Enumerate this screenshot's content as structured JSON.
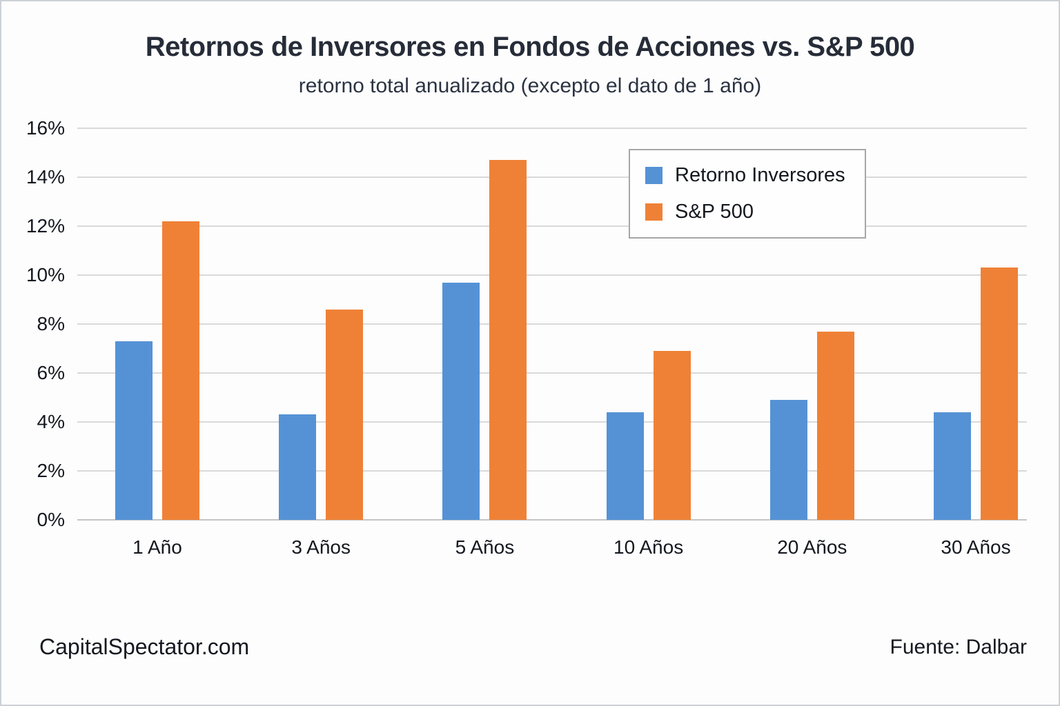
{
  "page": {
    "title": "Retornos de Inversores en Fondos de Acciones vs. S&P 500",
    "subtitle": "retorno total anualizado (excepto el dato de 1 año)",
    "footer_left": "CapitalSpectator.com",
    "footer_right": "Fuente: Dalbar"
  },
  "colors": {
    "investors_blue": "#5592d5",
    "sp500_orange": "#ef8136",
    "gridline": "#d9d9d9",
    "axis_line": "#c4c4c4",
    "title_text": "#262c38",
    "legend_border": "#a6a6a6"
  },
  "legend": {
    "items": [
      {
        "label": "Retorno Inversores",
        "color": "#5592d5"
      },
      {
        "label": "S&P 500",
        "color": "#ef8136"
      }
    ]
  },
  "chart_data": {
    "type": "bar",
    "title": "Retornos de Inversores en Fondos de Acciones vs. S&P 500",
    "subtitle": "retorno total anualizado (excepto el dato de 1 año)",
    "categories": [
      "1 Año",
      "3 Años",
      "5 Años",
      "10 Años",
      "20 Años",
      "30 Años"
    ],
    "series": [
      {
        "name": "Retorno Inversores",
        "color": "#5592d5",
        "values": [
          7.3,
          4.3,
          9.7,
          4.4,
          4.9,
          4.4
        ]
      },
      {
        "name": "S&P 500",
        "color": "#ef8136",
        "values": [
          12.2,
          8.6,
          14.7,
          6.9,
          7.7,
          10.3
        ]
      }
    ],
    "xlabel": "",
    "ylabel": "",
    "ylim": [
      0,
      16
    ],
    "ytick_step": 2,
    "yticks": [
      "0%",
      "2%",
      "4%",
      "6%",
      "8%",
      "10%",
      "12%",
      "14%",
      "16%"
    ],
    "grid": true,
    "legend_position": "upper-right",
    "credit": "CapitalSpectator.com",
    "source": "Fuente: Dalbar"
  }
}
